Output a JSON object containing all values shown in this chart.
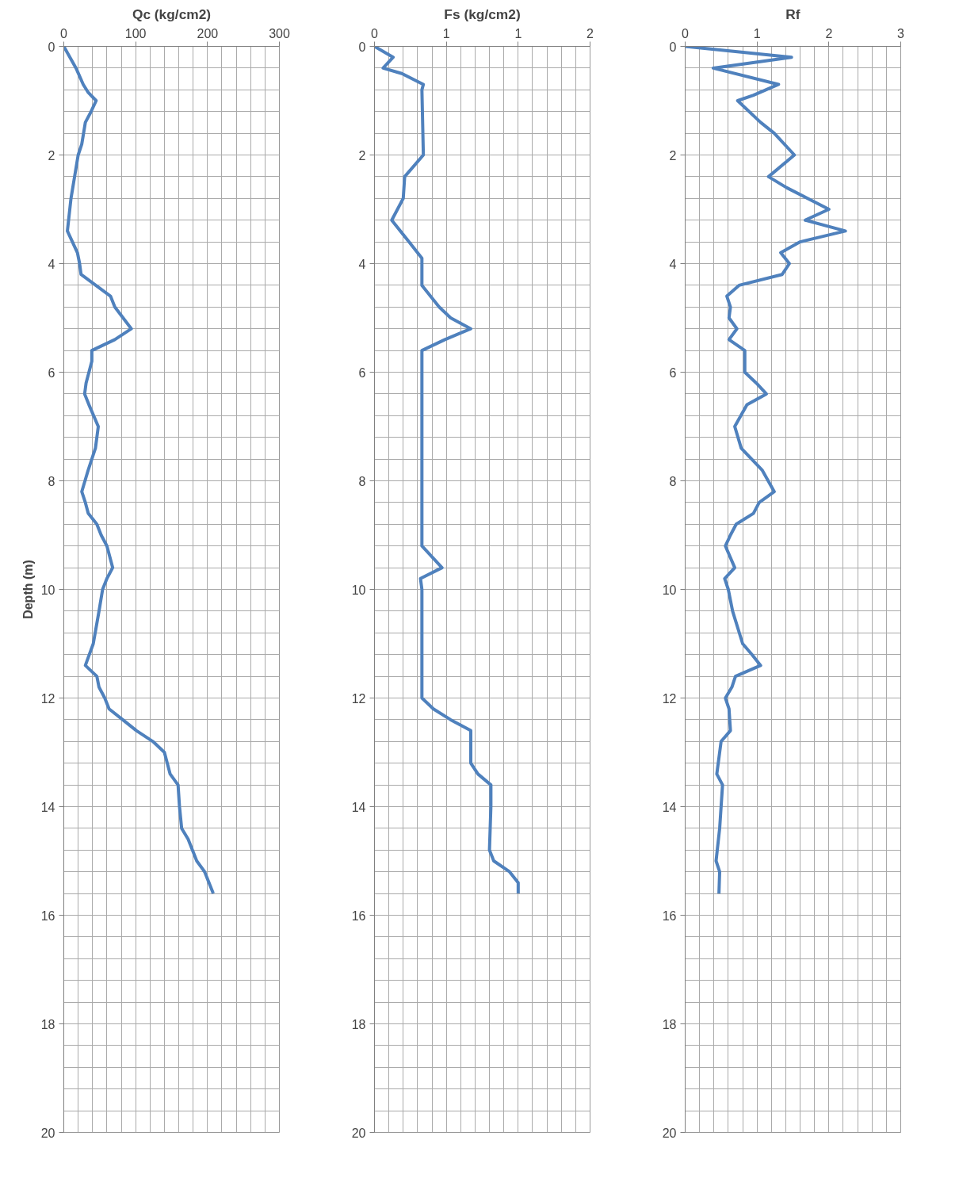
{
  "chart_data": [
    {
      "type": "line",
      "orientation": "horizontal",
      "title": "Qc (kg/cm2)",
      "ylabel": "Depth (m)",
      "xlim": [
        0,
        300
      ],
      "xticks": [
        0,
        100,
        200,
        300
      ],
      "ylim": [
        20,
        0
      ],
      "yticks": [
        0,
        2,
        4,
        6,
        8,
        10,
        12,
        14,
        16,
        18,
        20
      ],
      "grid": true,
      "x": [
        0,
        0.4,
        0.7,
        0.85,
        1.0,
        1.2,
        1.4,
        1.8,
        2.0,
        2.8,
        3.4,
        3.8,
        4.0,
        4.2,
        4.6,
        4.8,
        5.2,
        5.4,
        5.6,
        5.8,
        6.2,
        6.4,
        6.6,
        7.0,
        7.4,
        7.8,
        8.2,
        8.4,
        8.6,
        8.8,
        9.0,
        9.2,
        9.6,
        9.8,
        10.0,
        10.4,
        11.0,
        11.4,
        11.6,
        11.8,
        12.0,
        12.2,
        12.4,
        12.6,
        12.8,
        13.0,
        13.4,
        13.6,
        14.0,
        14.4,
        14.6,
        14.8,
        15.0,
        15.2,
        15.6
      ],
      "series": [
        {
          "color": "#4f81bd",
          "values": [
            0,
            17,
            27,
            34,
            45,
            38,
            30,
            25,
            20,
            10,
            5,
            19,
            22,
            24,
            65,
            71,
            94,
            71,
            39,
            39,
            31,
            29,
            35,
            48,
            44,
            34,
            25,
            30,
            34,
            46,
            52,
            60,
            68,
            60,
            54,
            49,
            41,
            30,
            46,
            49,
            57,
            63,
            82,
            101,
            124,
            140,
            148,
            159,
            161,
            164,
            173,
            179,
            185,
            196,
            208
          ]
        }
      ]
    },
    {
      "type": "line",
      "orientation": "horizontal",
      "title": "Fs (kg/cm2)",
      "xlim": [
        0,
        1.5
      ],
      "xticks": [
        0,
        {
          "value": 0.5,
          "label": "1"
        },
        1,
        {
          "value": 1.5,
          "label": "2"
        }
      ],
      "ylim": [
        20,
        0
      ],
      "yticks": [
        0,
        2,
        4,
        6,
        8,
        10,
        12,
        14,
        16,
        18,
        20
      ],
      "grid": true,
      "x": [
        0,
        0.2,
        0.4,
        0.5,
        0.7,
        0.8,
        2.0,
        2.4,
        2.8,
        3.2,
        3.6,
        3.9,
        4.4,
        4.8,
        5.0,
        5.2,
        5.4,
        5.6,
        5.8,
        9.2,
        9.6,
        9.8,
        10.0,
        12.0,
        12.2,
        12.4,
        12.6,
        12.8,
        13.2,
        13.4,
        13.6,
        14.0,
        14.8,
        15.0,
        15.2,
        15.4,
        15.6
      ],
      "series": [
        {
          "color": "#4f81bd",
          "values": [
            0,
            0.13,
            0.06,
            0.19,
            0.34,
            0.33,
            0.34,
            0.21,
            0.2,
            0.12,
            0.24,
            0.33,
            0.33,
            0.45,
            0.53,
            0.67,
            0.49,
            0.33,
            0.33,
            0.33,
            0.47,
            0.32,
            0.33,
            0.33,
            0.41,
            0.53,
            0.67,
            0.67,
            0.67,
            0.72,
            0.81,
            0.81,
            0.8,
            0.83,
            0.94,
            1.0,
            1.0
          ]
        }
      ]
    },
    {
      "type": "line",
      "orientation": "horizontal",
      "title": "Rf",
      "xlim": [
        0,
        3
      ],
      "xticks": [
        0,
        1,
        2,
        3
      ],
      "ylim": [
        20,
        0
      ],
      "yticks": [
        0,
        2,
        4,
        6,
        8,
        10,
        12,
        14,
        16,
        18,
        20
      ],
      "grid": true,
      "x": [
        0,
        0.2,
        0.4,
        0.7,
        0.9,
        1.0,
        1.4,
        1.6,
        2.0,
        2.4,
        2.6,
        3.0,
        3.2,
        3.4,
        3.6,
        3.8,
        4.0,
        4.2,
        4.4,
        4.6,
        4.8,
        5.0,
        5.2,
        5.4,
        5.6,
        6.0,
        6.2,
        6.4,
        6.6,
        7.0,
        7.4,
        7.8,
        8.2,
        8.4,
        8.6,
        8.8,
        9.0,
        9.2,
        9.6,
        9.8,
        10.0,
        10.4,
        11.0,
        11.2,
        11.4,
        11.6,
        11.8,
        12.0,
        12.2,
        12.6,
        12.8,
        13.4,
        13.6,
        14.4,
        15.0,
        15.2,
        15.6
      ],
      "series": [
        {
          "color": "#4f81bd",
          "values": [
            0,
            1.48,
            0.39,
            1.3,
            0.95,
            0.73,
            1.05,
            1.24,
            1.52,
            1.16,
            1.41,
            2.0,
            1.67,
            2.23,
            1.6,
            1.33,
            1.45,
            1.35,
            0.75,
            0.58,
            0.63,
            0.61,
            0.72,
            0.61,
            0.83,
            0.83,
            0.99,
            1.13,
            0.86,
            0.69,
            0.78,
            1.07,
            1.24,
            1.03,
            0.95,
            0.71,
            0.63,
            0.56,
            0.69,
            0.55,
            0.6,
            0.66,
            0.8,
            0.93,
            1.05,
            0.7,
            0.65,
            0.56,
            0.61,
            0.63,
            0.5,
            0.44,
            0.52,
            0.48,
            0.43,
            0.48,
            0.47
          ]
        }
      ]
    }
  ]
}
